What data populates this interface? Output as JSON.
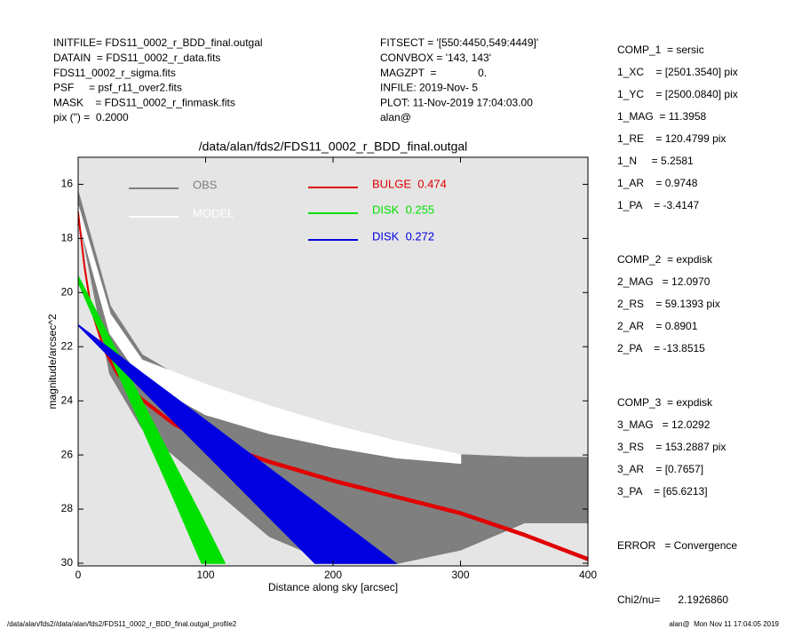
{
  "header": {
    "left": [
      "INITFILE= FDS11_0002_r_BDD_final.outgal",
      "DATAIN  = FDS11_0002_r_data.fits",
      "FDS11_0002_r_sigma.fits",
      "PSF     = psf_r11_over2.fits",
      "MASK    = FDS11_0002_r_finmask.fits",
      "pix (\") =  0.2000"
    ],
    "middle": [
      "FITSECT = '[550:4450,549:4449]'",
      "CONVBOX = '143, 143'",
      "MAGZPT  =              0.",
      "INFILE: 2019-Nov- 5",
      "PLOT: 11-Nov-2019 17:04:03.00",
      "alan@"
    ]
  },
  "fit_params": [
    [
      "COMP_1  = sersic",
      "1_XC    = [2501.3540] pix",
      "1_YC    = [2500.0840] pix",
      "1_MAG  = 11.3958",
      "1_RE    = 120.4799 pix",
      "1_N     = 5.2581",
      "1_AR    = 0.9748",
      "1_PA    = -3.4147"
    ],
    [
      "COMP_2  = expdisk",
      "2_MAG   = 12.0970",
      "2_RS    = 59.1393 pix",
      "2_AR    = 0.8901",
      "2_PA    = -13.8515"
    ],
    [
      "COMP_3  = expdisk",
      "3_MAG   = 12.0292",
      "3_RS    = 153.2887 pix",
      "3_AR    = [0.7657]",
      "3_PA    = [65.6213]"
    ],
    [
      "ERROR   = Convergence"
    ],
    [
      "Chi2/nu=      2.1926860"
    ]
  ],
  "footer": {
    "left": "/data/alan/fds2//data/alan/fds2/FDS11_0002_r_BDD_final.outgal_profile2",
    "right": "alan@  Mon Nov 11 17:04:05 2019"
  },
  "chart_data": {
    "type": "band",
    "title": "/data/alan/fds2/FDS11_0002_r_BDD_final.outgal",
    "x_label": "Distance along sky [arcsec]",
    "y_label": "magnitude/arcsec^2",
    "xlim": [
      0,
      400
    ],
    "ylim": [
      30.1,
      15
    ],
    "xticks": [
      0,
      100,
      200,
      300,
      400
    ],
    "yticks": [
      16,
      18,
      20,
      22,
      24,
      26,
      28,
      30
    ],
    "background": "#e5e5e5",
    "series": [
      {
        "name": "OBS",
        "color": "#7f7f7f",
        "x": [
          0,
          25,
          50,
          100,
          150,
          200,
          250,
          300,
          350,
          400
        ],
        "values": [
          16.3,
          20.5,
          22.3,
          23.7,
          24.6,
          25.3,
          25.7,
          26,
          26.1,
          26.1
        ],
        "values2": [
          17,
          23,
          25,
          27,
          29,
          30,
          30,
          29.5,
          28.5,
          28.5
        ]
      },
      {
        "name": "MODEL",
        "color": "#ffffff",
        "x": [
          0,
          25,
          50,
          100,
          150,
          200,
          250,
          300
        ],
        "values": [
          16.8,
          20.8,
          22.5,
          23.4,
          24.2,
          24.9,
          25.5,
          26
        ],
        "values2": [
          17.2,
          21.5,
          23.2,
          24.5,
          25.2,
          25.7,
          26.1,
          26.3
        ]
      },
      {
        "name": "BULGE  0.474",
        "color": "#e00000",
        "x": [
          0,
          5,
          10,
          20,
          30,
          50,
          75,
          100,
          150,
          200,
          250,
          300,
          350,
          400
        ],
        "values": [
          17,
          19,
          20.5,
          22,
          22.9,
          23.9,
          24.8,
          25.4,
          26.2,
          26.9,
          27.5,
          28.1,
          28.9,
          29.8
        ],
        "values2": [
          17.1,
          19.1,
          20.6,
          22.1,
          23,
          24,
          24.9,
          25.5,
          26.3,
          27,
          27.6,
          28.2,
          29,
          29.9
        ]
      },
      {
        "name": "DISK  0.255",
        "color": "#00e000",
        "x": [
          0,
          25,
          50,
          75,
          97,
          115
        ],
        "values": [
          19.4,
          21.7,
          24,
          26.3,
          28.3,
          30
        ],
        "values2": [
          19.6,
          22.3,
          24.95,
          27.6,
          30,
          null
        ]
      },
      {
        "name": "DISK  0.272",
        "color": "#0000e0",
        "x": [
          0,
          50,
          100,
          150,
          186,
          249
        ],
        "values": [
          21.2,
          22.97,
          24.73,
          26.5,
          27.77,
          30
        ],
        "values2": [
          21.2,
          23.57,
          25.93,
          28.3,
          30,
          null
        ]
      }
    ]
  }
}
